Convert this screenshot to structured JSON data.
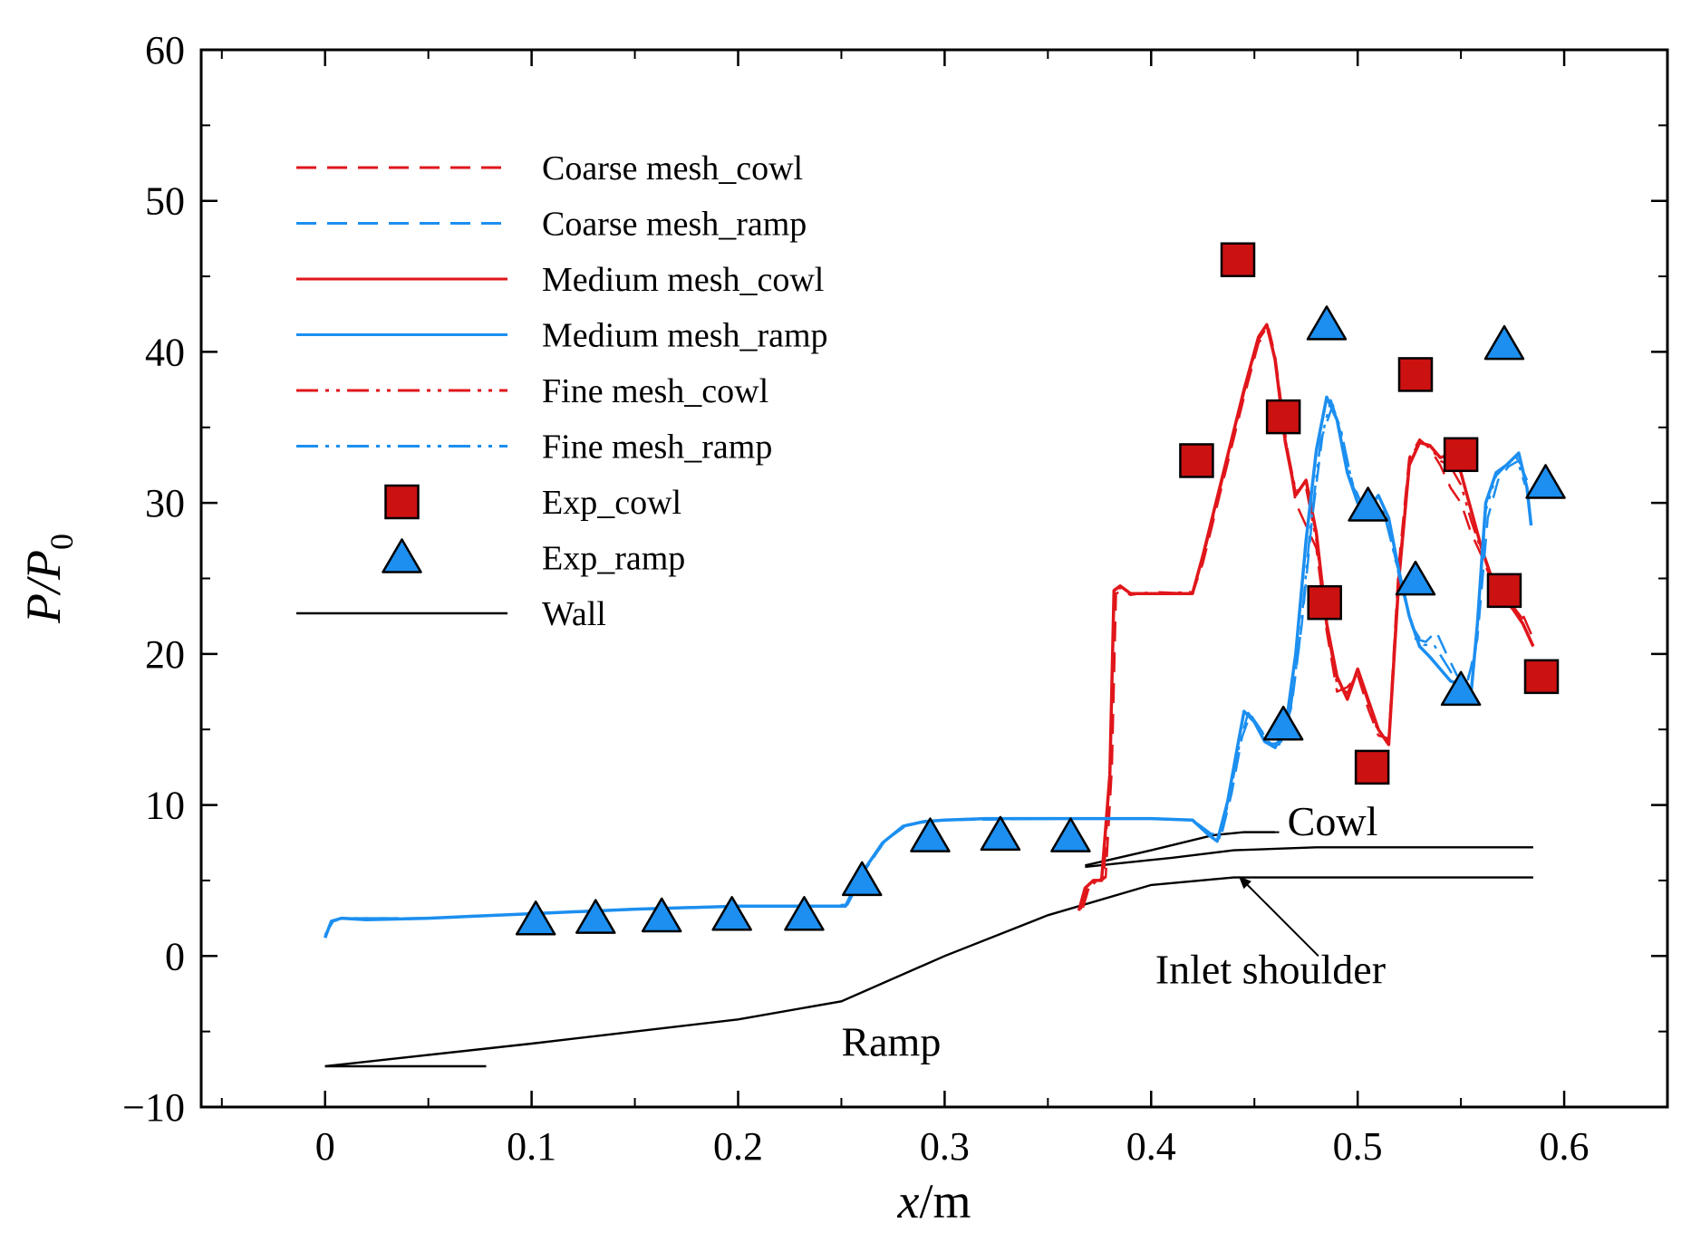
{
  "chart_data": {
    "type": "line",
    "title": "",
    "xlabel": "x/m",
    "ylabel": "P/P0",
    "xlabel_parts": [
      "x",
      "/m"
    ],
    "ylabel_parts": [
      "P/P",
      "0"
    ],
    "xlim": [
      -0.06,
      0.65
    ],
    "ylim": [
      -10,
      60
    ],
    "xticks": [
      0,
      0.1,
      0.2,
      0.3,
      0.4,
      0.5,
      0.6
    ],
    "xtick_labels": [
      "0",
      "0.1",
      "0.2",
      "0.3",
      "0.4",
      "0.5",
      "0.6"
    ],
    "yticks": [
      -10,
      0,
      10,
      20,
      30,
      40,
      50,
      60
    ],
    "ytick_labels": [
      "−10",
      "0",
      "10",
      "20",
      "30",
      "40",
      "50",
      "60"
    ],
    "grid": false,
    "legend_position": "top-left",
    "colors": {
      "cowl": "#e0161b",
      "ramp": "#1c8ff0",
      "wall": "#000000",
      "marker_red": "#cc1111",
      "marker_blue": "#1c8ff0"
    },
    "legend": [
      {
        "label": "Coarse mesh_cowl",
        "kind": "line",
        "color_key": "cowl",
        "dash": "dashed"
      },
      {
        "label": "Coarse mesh_ramp",
        "kind": "line",
        "color_key": "ramp",
        "dash": "dashed"
      },
      {
        "label": "Medium mesh_cowl",
        "kind": "line",
        "color_key": "cowl",
        "dash": "solid"
      },
      {
        "label": "Medium mesh_ramp",
        "kind": "line",
        "color_key": "ramp",
        "dash": "solid"
      },
      {
        "label": "Fine mesh_cowl",
        "kind": "line",
        "color_key": "cowl",
        "dash": "dashdotdot"
      },
      {
        "label": "Fine mesh_ramp",
        "kind": "line",
        "color_key": "ramp",
        "dash": "dashdotdot"
      },
      {
        "label": "Exp_cowl",
        "kind": "square",
        "color_key": "marker_red"
      },
      {
        "label": "Exp_ramp",
        "kind": "triangle",
        "color_key": "marker_blue"
      },
      {
        "label": "Wall",
        "kind": "line",
        "color_key": "wall",
        "dash": "solid"
      }
    ],
    "series": [
      {
        "name": "Medium mesh_cowl",
        "color_key": "cowl",
        "dash": "solid",
        "width": 3.5,
        "x": [
          0.365,
          0.368,
          0.372,
          0.376,
          0.38,
          0.382,
          0.385,
          0.39,
          0.4,
          0.42,
          0.425,
          0.435,
          0.445,
          0.452,
          0.456,
          0.46,
          0.465,
          0.47,
          0.475,
          0.48,
          0.485,
          0.49,
          0.495,
          0.5,
          0.505,
          0.51,
          0.515,
          0.52,
          0.525,
          0.53,
          0.535,
          0.54,
          0.545,
          0.55,
          0.555,
          0.56,
          0.565,
          0.57,
          0.575,
          0.58,
          0.585
        ],
        "y": [
          3.0,
          4.5,
          5.0,
          5.0,
          12.0,
          24.2,
          24.5,
          24.0,
          24.0,
          24.0,
          26.5,
          32.0,
          37.5,
          41.0,
          41.8,
          39.5,
          34.0,
          30.5,
          31.5,
          28.0,
          22.0,
          18.5,
          17.0,
          19.0,
          17.0,
          15.0,
          14.0,
          25.0,
          32.5,
          34.0,
          33.8,
          33.0,
          33.2,
          32.0,
          29.5,
          27.0,
          25.0,
          23.8,
          23.0,
          22.0,
          20.5
        ]
      },
      {
        "name": "Coarse mesh_cowl",
        "color_key": "cowl",
        "dash": "dashed",
        "width": 2.5,
        "x": [
          0.367,
          0.37,
          0.374,
          0.378,
          0.381,
          0.383,
          0.386,
          0.39,
          0.4,
          0.42,
          0.425,
          0.435,
          0.445,
          0.452,
          0.457,
          0.46,
          0.465,
          0.47,
          0.475,
          0.48,
          0.485,
          0.49,
          0.495,
          0.5,
          0.505,
          0.51,
          0.515,
          0.52,
          0.525,
          0.53,
          0.535,
          0.54,
          0.545,
          0.55,
          0.555,
          0.56,
          0.565,
          0.57,
          0.575,
          0.58,
          0.585
        ],
        "y": [
          3.2,
          4.6,
          5.0,
          5.2,
          12.5,
          24.0,
          24.2,
          23.9,
          24.1,
          24.0,
          26.0,
          31.5,
          37.0,
          40.6,
          41.5,
          39.8,
          34.5,
          30.0,
          28.5,
          27.0,
          21.5,
          17.5,
          17.8,
          18.6,
          16.4,
          14.6,
          14.4,
          26.0,
          33.0,
          34.2,
          33.6,
          32.5,
          31.0,
          30.0,
          28.0,
          26.5,
          24.8,
          24.0,
          23.5,
          22.6,
          21.0
        ]
      },
      {
        "name": "Fine mesh_cowl",
        "color_key": "cowl",
        "dash": "dashdotdot",
        "width": 2.5,
        "x": [
          0.366,
          0.369,
          0.373,
          0.377,
          0.38,
          0.382,
          0.385,
          0.39,
          0.4,
          0.42,
          0.425,
          0.435,
          0.445,
          0.452,
          0.456,
          0.46,
          0.465,
          0.47,
          0.475,
          0.48,
          0.485,
          0.49,
          0.495,
          0.5,
          0.505,
          0.51,
          0.515,
          0.52,
          0.525,
          0.53,
          0.535,
          0.54,
          0.545,
          0.55,
          0.555,
          0.56,
          0.565,
          0.57,
          0.575,
          0.58
        ],
        "y": [
          3.1,
          4.4,
          4.9,
          5.1,
          12.2,
          24.1,
          24.4,
          24.0,
          24.0,
          24.1,
          26.3,
          31.8,
          37.3,
          40.8,
          41.6,
          39.6,
          34.2,
          30.8,
          31.0,
          27.5,
          21.8,
          18.0,
          17.4,
          18.9,
          16.8,
          14.8,
          14.2,
          25.5,
          32.8,
          34.1,
          33.7,
          32.8,
          32.4,
          31.2,
          28.8,
          26.8,
          25.0,
          23.9,
          23.2,
          22.3
        ]
      },
      {
        "name": "Medium mesh_ramp",
        "color_key": "ramp",
        "dash": "solid",
        "width": 3.5,
        "x": [
          0.0,
          0.003,
          0.008,
          0.02,
          0.05,
          0.1,
          0.15,
          0.2,
          0.24,
          0.252,
          0.26,
          0.27,
          0.28,
          0.29,
          0.3,
          0.32,
          0.36,
          0.4,
          0.42,
          0.428,
          0.432,
          0.437,
          0.442,
          0.445,
          0.45,
          0.455,
          0.46,
          0.465,
          0.47,
          0.475,
          0.48,
          0.485,
          0.49,
          0.495,
          0.5,
          0.505,
          0.51,
          0.515,
          0.52,
          0.525,
          0.53,
          0.535,
          0.54,
          0.545,
          0.55,
          0.555,
          0.558,
          0.562,
          0.567,
          0.572,
          0.578,
          0.582,
          0.584
        ],
        "y": [
          1.2,
          2.3,
          2.5,
          2.4,
          2.5,
          2.8,
          3.1,
          3.3,
          3.3,
          3.3,
          5.5,
          7.5,
          8.6,
          8.9,
          9.0,
          9.1,
          9.1,
          9.1,
          9.0,
          8.0,
          7.6,
          10.2,
          14.0,
          16.2,
          15.5,
          14.2,
          13.8,
          15.0,
          20.0,
          27.5,
          33.5,
          37.0,
          35.5,
          32.0,
          30.0,
          29.5,
          30.5,
          29.0,
          25.5,
          22.5,
          20.5,
          19.8,
          19.0,
          18.2,
          18.0,
          17.5,
          22.0,
          30.0,
          32.0,
          32.5,
          33.3,
          31.0,
          28.5
        ]
      },
      {
        "name": "Coarse mesh_ramp",
        "color_key": "ramp",
        "dash": "dashed",
        "width": 2.5,
        "x": [
          0.0,
          0.004,
          0.01,
          0.05,
          0.1,
          0.15,
          0.2,
          0.24,
          0.253,
          0.262,
          0.272,
          0.282,
          0.292,
          0.3,
          0.36,
          0.4,
          0.42,
          0.429,
          0.434,
          0.439,
          0.444,
          0.448,
          0.453,
          0.458,
          0.463,
          0.468,
          0.473,
          0.478,
          0.483,
          0.488,
          0.493,
          0.498,
          0.503,
          0.508,
          0.513,
          0.518,
          0.523,
          0.528,
          0.533,
          0.538,
          0.543,
          0.548,
          0.553,
          0.558,
          0.563,
          0.568,
          0.573,
          0.578,
          0.582
        ],
        "y": [
          1.4,
          2.3,
          2.5,
          2.5,
          2.8,
          3.1,
          3.3,
          3.3,
          3.4,
          5.8,
          7.8,
          8.7,
          8.9,
          9.0,
          9.1,
          9.1,
          9.0,
          8.1,
          8.0,
          10.8,
          14.5,
          16.0,
          15.0,
          14.0,
          14.2,
          16.5,
          22.0,
          29.0,
          34.5,
          36.5,
          34.0,
          31.0,
          29.8,
          30.0,
          29.2,
          26.5,
          23.5,
          21.0,
          20.8,
          21.5,
          20.0,
          18.6,
          18.0,
          21.0,
          29.0,
          31.5,
          32.4,
          32.8,
          31.5
        ]
      },
      {
        "name": "Fine mesh_ramp",
        "color_key": "ramp",
        "dash": "dashdotdot",
        "width": 2.5,
        "x": [
          0.0,
          0.003,
          0.009,
          0.05,
          0.1,
          0.15,
          0.2,
          0.24,
          0.252,
          0.261,
          0.271,
          0.281,
          0.291,
          0.3,
          0.36,
          0.4,
          0.42,
          0.428,
          0.433,
          0.438,
          0.443,
          0.447,
          0.452,
          0.457,
          0.462,
          0.467,
          0.472,
          0.477,
          0.482,
          0.487,
          0.492,
          0.497,
          0.502,
          0.507,
          0.512,
          0.517,
          0.522,
          0.527,
          0.532,
          0.537,
          0.542,
          0.547,
          0.552,
          0.557,
          0.562,
          0.567,
          0.572,
          0.577,
          0.581
        ],
        "y": [
          1.3,
          2.3,
          2.5,
          2.5,
          2.8,
          3.1,
          3.3,
          3.3,
          3.3,
          5.6,
          7.6,
          8.6,
          8.9,
          9.0,
          9.1,
          9.1,
          9.0,
          8.0,
          7.8,
          10.5,
          14.2,
          16.1,
          15.2,
          14.1,
          14.0,
          15.8,
          21.0,
          28.2,
          34.0,
          36.8,
          34.8,
          31.5,
          29.9,
          29.8,
          29.8,
          27.0,
          24.0,
          21.7,
          20.6,
          20.6,
          19.5,
          18.4,
          17.8,
          20.0,
          29.5,
          31.8,
          32.5,
          33.0,
          31.2
        ]
      }
    ],
    "exp_cowl": {
      "name": "Exp_cowl",
      "x": [
        0.422,
        0.442,
        0.464,
        0.484,
        0.507,
        0.528,
        0.55,
        0.571,
        0.589
      ],
      "y": [
        32.8,
        46.1,
        35.7,
        23.4,
        12.5,
        38.5,
        33.2,
        24.2,
        18.5
      ]
    },
    "exp_ramp": {
      "name": "Exp_ramp",
      "x": [
        0.102,
        0.131,
        0.163,
        0.197,
        0.232,
        0.26,
        0.293,
        0.327,
        0.361,
        0.464,
        0.485,
        0.505,
        0.528,
        0.55,
        0.571,
        0.591
      ],
      "y": [
        2.4,
        2.5,
        2.6,
        2.7,
        2.7,
        5.0,
        7.9,
        8.0,
        7.9,
        15.3,
        41.8,
        29.8,
        24.9,
        17.6,
        40.5,
        31.3
      ]
    },
    "wall_lines": [
      {
        "name": "ramp-wall-upper",
        "x": [
          0.0,
          0.1,
          0.2,
          0.25,
          0.3,
          0.35,
          0.4,
          0.44,
          0.585
        ],
        "y": [
          -7.3,
          -5.8,
          -4.2,
          -3.0,
          0.0,
          2.7,
          4.7,
          5.2,
          5.2
        ]
      },
      {
        "name": "ramp-wall-lower",
        "x": [
          0.0,
          0.078
        ],
        "y": [
          -7.3,
          -7.3
        ]
      },
      {
        "name": "cowl-wall-lower",
        "x": [
          0.368,
          0.41,
          0.44,
          0.48,
          0.585
        ],
        "y": [
          5.9,
          6.5,
          7.0,
          7.2,
          7.2
        ]
      },
      {
        "name": "cowl-wall-upper",
        "x": [
          0.368,
          0.4,
          0.43,
          0.445,
          0.46
        ],
        "y": [
          6.0,
          7.0,
          8.0,
          8.2,
          8.2
        ]
      }
    ],
    "annotations": [
      {
        "name": "cowl-label",
        "text": "Cowl",
        "x": 0.466,
        "y": 8.0
      },
      {
        "name": "inlet-shoulder-label",
        "text": "Inlet shoulder",
        "x": 0.402,
        "y": -1.8
      },
      {
        "name": "ramp-label",
        "text": "Ramp",
        "x": 0.25,
        "y": -6.6
      }
    ],
    "arrow": {
      "from": [
        0.481,
        0.0
      ],
      "to": [
        0.443,
        5.2
      ]
    },
    "cowl_leader": {
      "from": [
        0.445,
        8.2
      ],
      "to": [
        0.462,
        8.2
      ]
    }
  }
}
